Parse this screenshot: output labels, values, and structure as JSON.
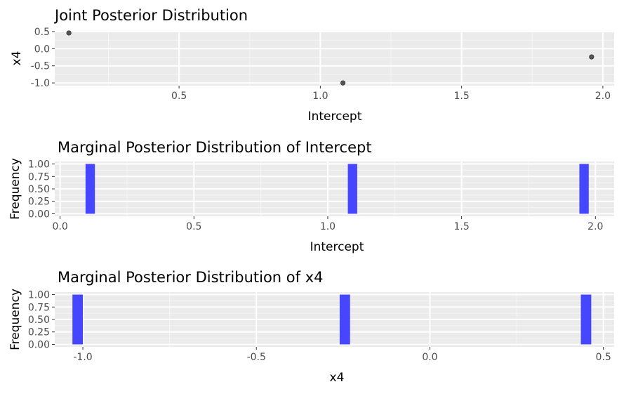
{
  "chart_data": [
    {
      "type": "scatter",
      "title": "Joint Posterior Distribution",
      "xlabel": "Intercept",
      "ylabel": "x4",
      "xlim": [
        0.06,
        2.04
      ],
      "ylim": [
        -1.08,
        0.52
      ],
      "x_ticks": [
        0.5,
        1.0,
        1.5,
        2.0
      ],
      "x_tick_labels": [
        "0.5",
        "1.0",
        "1.5",
        "2.0"
      ],
      "y_ticks": [
        0.5,
        0.0,
        -0.5,
        -1.0
      ],
      "y_tick_labels": [
        "0.5",
        "0.0",
        "-0.5",
        "-1.0"
      ],
      "points": [
        {
          "x": 0.11,
          "y": 0.46
        },
        {
          "x": 1.08,
          "y": -1.0
        },
        {
          "x": 1.96,
          "y": -0.24
        }
      ],
      "point_color": "#555555",
      "grid": true,
      "panel_background": "#ebebeb"
    },
    {
      "type": "bar",
      "title": "Marginal Posterior Distribution of Intercept",
      "xlabel": "Intercept",
      "ylabel": "Frequency",
      "xlim": [
        -0.02,
        2.07
      ],
      "ylim": [
        -0.05,
        1.05
      ],
      "x_ticks": [
        0.0,
        0.5,
        1.0,
        1.5,
        2.0
      ],
      "x_tick_labels": [
        "0.0",
        "0.5",
        "1.0",
        "1.5",
        "2.0"
      ],
      "y_ticks": [
        1.0,
        0.75,
        0.5,
        0.25,
        0.0
      ],
      "y_tick_labels": [
        "1.00",
        "0.75",
        "0.50",
        "0.25",
        "0.00"
      ],
      "bars": [
        {
          "xmin": 0.095,
          "xmax": 0.13,
          "value": 1
        },
        {
          "xmin": 1.075,
          "xmax": 1.11,
          "value": 1
        },
        {
          "xmin": 1.94,
          "xmax": 1.975,
          "value": 1
        }
      ],
      "bar_color": "#4646ff",
      "grid": true,
      "panel_background": "#ebebeb"
    },
    {
      "type": "bar",
      "title": "Marginal Posterior Distribution of x4",
      "xlabel": "x4",
      "ylabel": "Frequency",
      "xlim": [
        -1.081,
        0.531
      ],
      "ylim": [
        -0.05,
        1.05
      ],
      "x_ticks": [
        -1.0,
        -0.5,
        0.0,
        0.5
      ],
      "x_tick_labels": [
        "-1.0",
        "-0.5",
        "0.0",
        "0.5"
      ],
      "y_ticks": [
        1.0,
        0.75,
        0.5,
        0.25,
        0.0
      ],
      "y_tick_labels": [
        "1.00",
        "0.75",
        "0.50",
        "0.25",
        "0.00"
      ],
      "bars": [
        {
          "xmin": -1.03,
          "xmax": -1.0,
          "value": 1
        },
        {
          "xmin": -0.26,
          "xmax": -0.23,
          "value": 1
        },
        {
          "xmin": 0.435,
          "xmax": 0.465,
          "value": 1
        }
      ],
      "bar_color": "#4646ff",
      "grid": true,
      "panel_background": "#ebebeb"
    }
  ]
}
